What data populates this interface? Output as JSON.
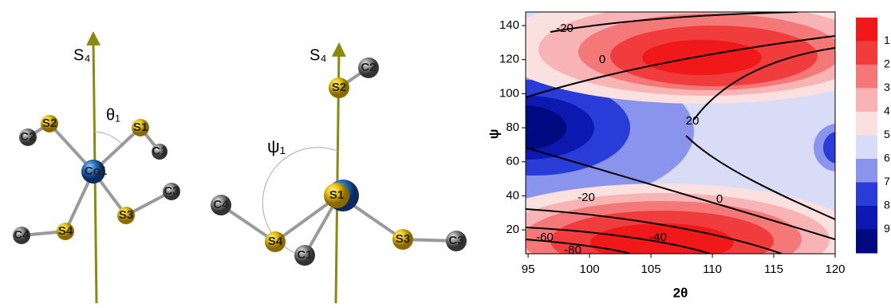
{
  "molecules": [
    {
      "axis_label": "S₄",
      "angle_label": "θ₁",
      "atoms": [
        "S2",
        "C2",
        "S1",
        "C1",
        "Co1",
        "S4",
        "C4",
        "S3",
        "C3"
      ]
    },
    {
      "axis_label": "S₄",
      "angle_label": "ψ₁",
      "atoms": [
        "S2",
        "C2",
        "C4",
        "S4",
        "C1",
        "S1",
        "S3",
        "C3"
      ]
    }
  ],
  "chart_data": {
    "type": "contour",
    "xlabel": "2θ",
    "ylabel": "ψ",
    "xlim": [
      94.8,
      120
    ],
    "ylim": [
      6,
      148
    ],
    "xticks": [
      95,
      100,
      105,
      110,
      115,
      120
    ],
    "yticks": [
      20,
      40,
      60,
      80,
      100,
      120,
      140
    ],
    "contour_labels": [
      -20,
      0,
      20,
      -20,
      0,
      -40,
      -60,
      -80
    ],
    "colorbar": {
      "ticks": [
        1,
        2,
        3,
        4,
        5,
        6,
        7,
        8,
        9
      ],
      "colors": [
        "#f01818",
        "#f03c3c",
        "#f47878",
        "#f8b4b4",
        "#fbe0e0",
        "#d8dcf6",
        "#8a94ec",
        "#2a3cd8",
        "#0c18b0",
        "#000a80"
      ]
    }
  }
}
